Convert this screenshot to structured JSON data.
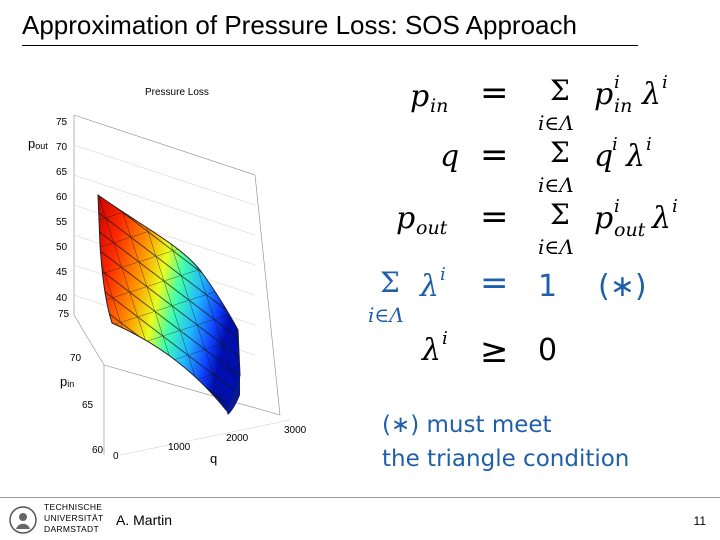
{
  "slide": {
    "title": "Approximation of Pressure Loss: SOS Approach",
    "author": "A. Martin",
    "page_number": "11"
  },
  "plot": {
    "title": "Pressure Loss",
    "pout_label": {
      "main": "p",
      "sub": "out"
    },
    "pin_label": {
      "main": "p",
      "sub": "in"
    },
    "q_label": "q",
    "z_ticks": [
      "75",
      "70",
      "65",
      "60",
      "55",
      "50",
      "45",
      "40"
    ],
    "pin_ticks": [
      "75",
      "70",
      "65",
      "60"
    ],
    "q_ticks": [
      "0",
      "1000",
      "2000",
      "3000"
    ]
  },
  "formulas": {
    "f1": {
      "lhs": "p",
      "lhs_sub": "in",
      "eq": "=",
      "sum": "Σ",
      "sum_sub": "i∈Λ",
      "rhs_p": "p",
      "rhs_sup": "i",
      "rhs_sub": "in",
      "lam": "λ",
      "lam_sup": "i"
    },
    "f2": {
      "lhs": "q",
      "eq": "=",
      "sum": "Σ",
      "sum_sub": "i∈Λ",
      "rhs_p": "q",
      "rhs_sup": "i",
      "lam": "λ",
      "lam_sup": "i"
    },
    "f3": {
      "lhs": "p",
      "lhs_sub": "out",
      "eq": "=",
      "sum": "Σ",
      "sum_sub": "i∈Λ",
      "rhs_p": "p",
      "rhs_sup": "i",
      "rhs_sub": "out",
      "lam": "λ",
      "lam_sup": "i"
    },
    "f4": {
      "sum": "Σ",
      "sum_sub": "i∈Λ",
      "lam": "λ",
      "lam_sup": "i",
      "eq": "=",
      "rhs": "1",
      "star": "(∗)"
    },
    "f5": {
      "lam": "λ",
      "lam_sup": "i",
      "geq": "≥",
      "rhs": "0"
    }
  },
  "note": {
    "line1": "(∗) must meet",
    "line2": "the triangle condition"
  },
  "logo": {
    "line1": "TECHNISCHE",
    "line2": "UNIVERSITÄT",
    "line3": "DARMSTADT"
  },
  "colors": {
    "blue": "#1f5faa"
  }
}
